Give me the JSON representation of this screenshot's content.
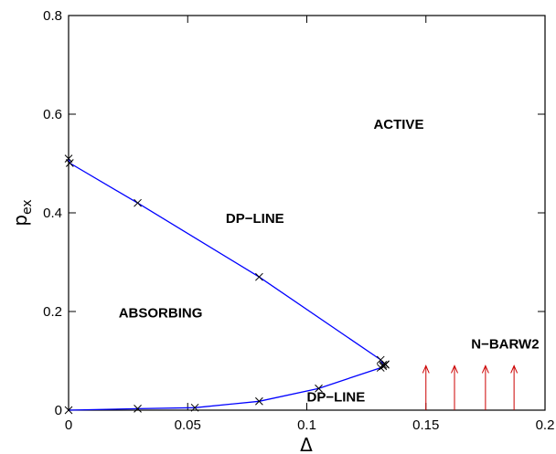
{
  "chart_data": {
    "type": "line",
    "xlabel": "Δ",
    "ylabel": "p",
    "ylabel_subscript": "ex",
    "xlim": [
      0,
      0.2
    ],
    "ylim": [
      0,
      0.8
    ],
    "x_ticks": [
      "0",
      "0.05",
      "0.1",
      "0.15",
      "0.2"
    ],
    "y_ticks": [
      "0",
      "0.2",
      "0.4",
      "0.6",
      "0.8"
    ],
    "series": [
      {
        "name": "DP-LINE (upper)",
        "color": "#0000ff",
        "marker": "x",
        "x": [
          0,
          0.0005,
          0.029,
          0.08,
          0.131,
          0.132,
          0.133
        ],
        "y": [
          0.51,
          0.501,
          0.42,
          0.27,
          0.102,
          0.092,
          0.093
        ]
      },
      {
        "name": "DP-LINE (lower)",
        "color": "#0000ff",
        "marker": "x",
        "x": [
          0,
          0.029,
          0.053,
          0.08,
          0.105,
          0.131,
          0.132,
          0.133
        ],
        "y": [
          0,
          0.003,
          0.005,
          0.018,
          0.044,
          0.086,
          0.089,
          0.092
        ]
      }
    ],
    "arrows": {
      "color": "#cc0000",
      "x": [
        0.15,
        0.162,
        0.175,
        0.187
      ],
      "y_from": 0,
      "y_to": 0.09
    },
    "annotations": [
      {
        "text": "ACTIVE",
        "x": 0.128,
        "y": 0.57
      },
      {
        "text": "DP−LINE",
        "x": 0.066,
        "y": 0.38
      },
      {
        "text": "ABSORBING",
        "x": 0.021,
        "y": 0.188
      },
      {
        "text": "N−BARW2",
        "x": 0.169,
        "y": 0.125
      },
      {
        "text": "DP−LINE",
        "x": 0.1,
        "y": 0.018
      }
    ],
    "grid": false,
    "legend": "none"
  }
}
